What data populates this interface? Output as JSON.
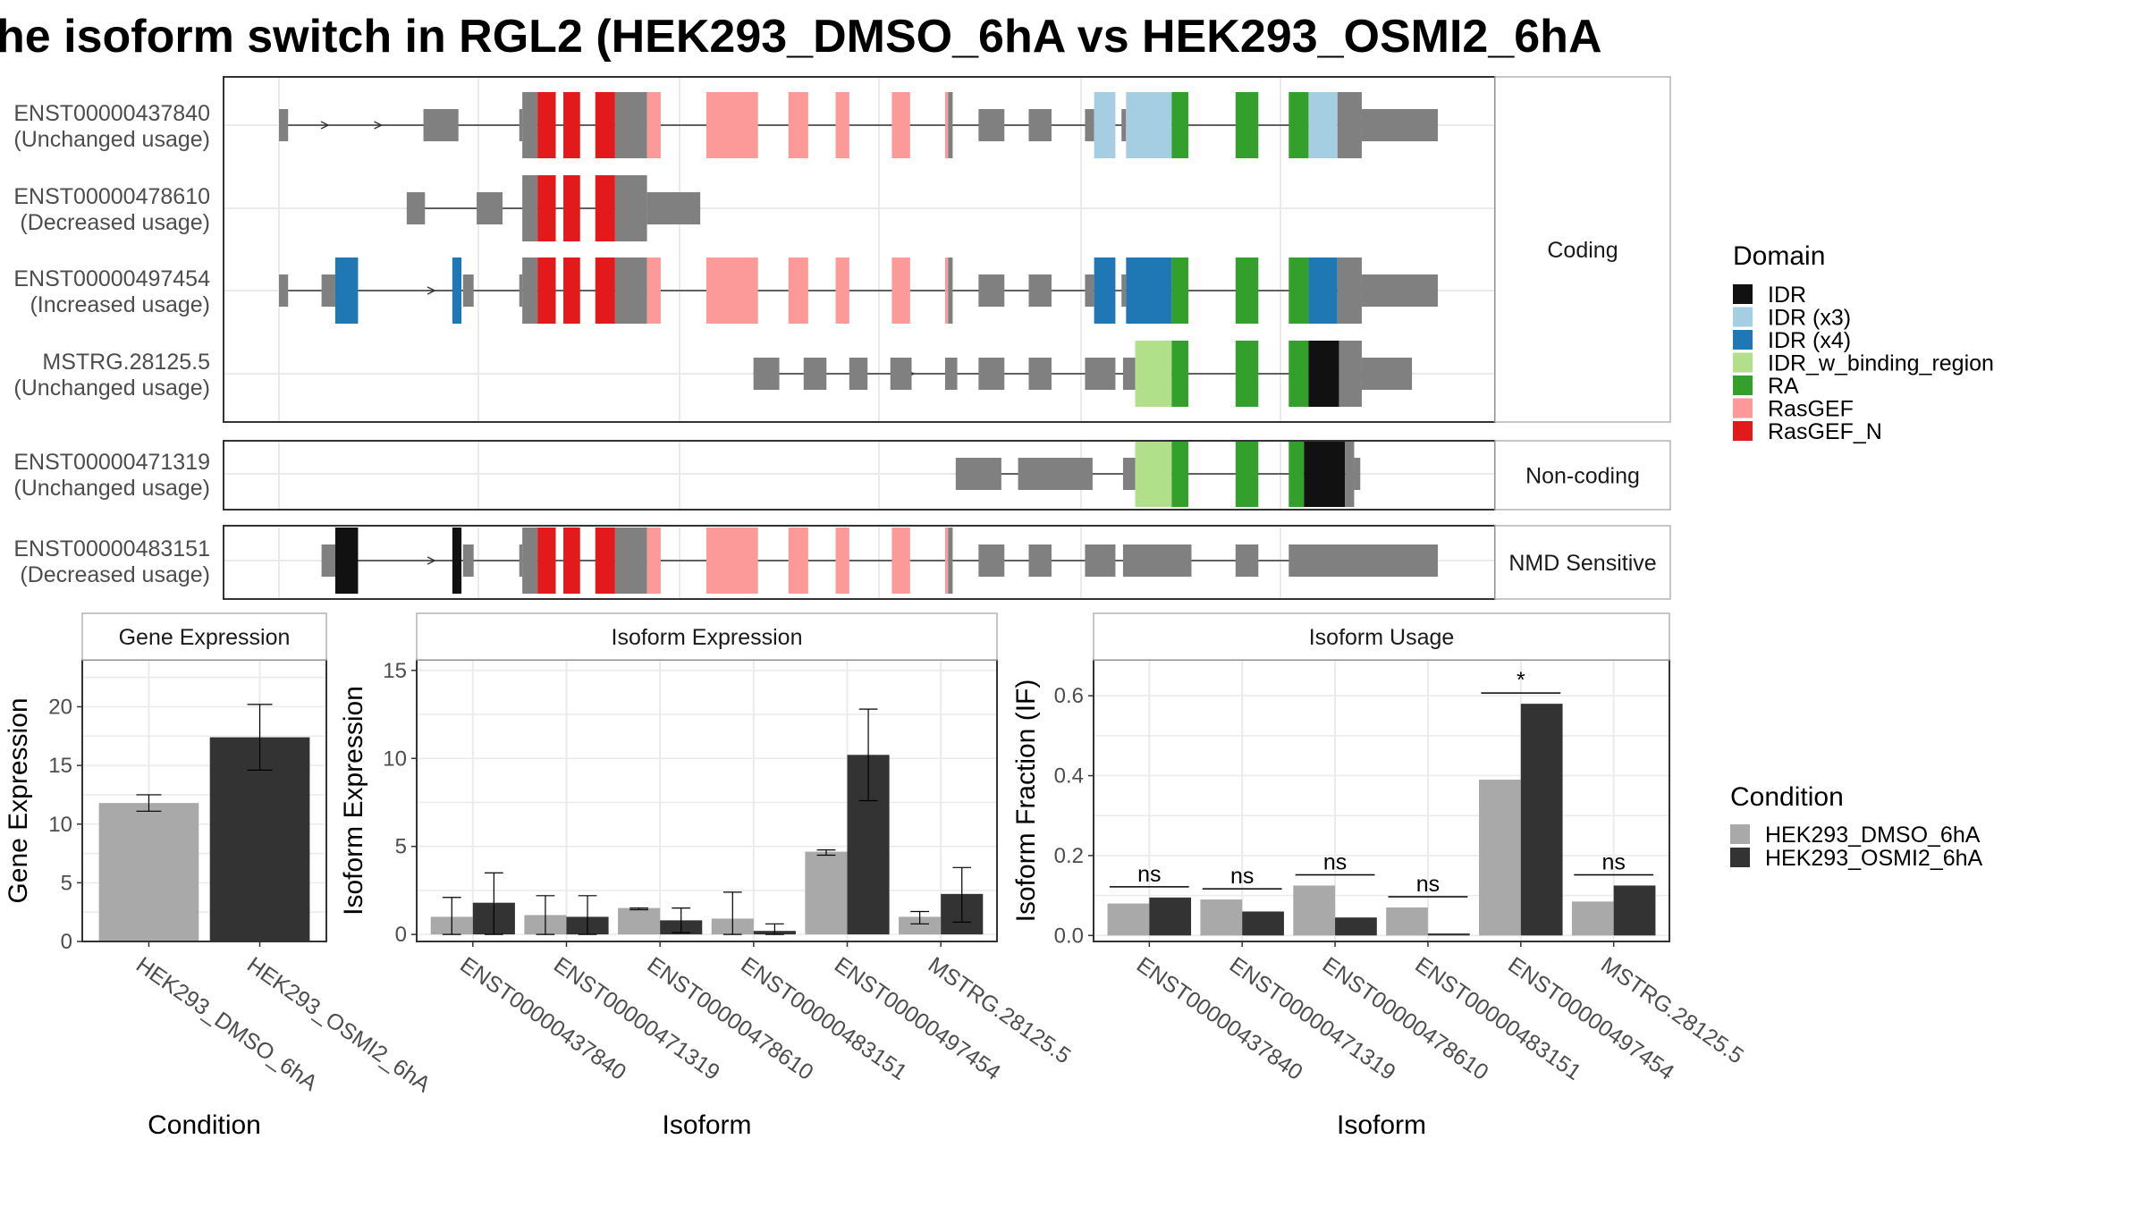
{
  "figure": {
    "title": "he isoform switch in RGL2 (HEK293_DMSO_6hA vs HEK293_OSMI2_6hA"
  },
  "structure_panel": {
    "groups": [
      {
        "label": "Coding",
        "rows": [
          0,
          1,
          2,
          3
        ]
      },
      {
        "label": "Non-coding",
        "rows": [
          4
        ]
      },
      {
        "label": "NMD Sensitive",
        "rows": [
          5
        ]
      }
    ],
    "transcripts": [
      {
        "id": "ENST00000437840",
        "usage": "(Unchanged usage)",
        "segments": [
          [
            0,
            6,
            "exon"
          ],
          [
            95,
            118,
            "exon"
          ],
          [
            158,
            160,
            "exon"
          ],
          [
            160,
            170,
            "cds"
          ],
          [
            170,
            182,
            "RasGEF_N"
          ],
          [
            187,
            198,
            "RasGEF_N"
          ],
          [
            208,
            221,
            "RasGEF_N"
          ],
          [
            221,
            242,
            "cds"
          ],
          [
            242,
            251,
            "RasGEF"
          ],
          [
            281,
            315,
            "RasGEF"
          ],
          [
            335,
            348,
            "RasGEF"
          ],
          [
            366,
            375,
            "RasGEF"
          ],
          [
            403,
            415,
            "RasGEF"
          ],
          [
            438,
            440,
            "RasGEF"
          ],
          [
            440,
            443,
            "cds"
          ],
          [
            460,
            477,
            "exon"
          ],
          [
            493,
            508,
            "exon"
          ],
          [
            530,
            536,
            "exon"
          ],
          [
            536,
            550,
            "IDR (x3)"
          ],
          [
            554,
            557,
            "exon"
          ],
          [
            557,
            587,
            "IDR (x3)"
          ],
          [
            587,
            598,
            "RA"
          ],
          [
            629,
            644,
            "RA"
          ],
          [
            664,
            677,
            "RA"
          ],
          [
            677,
            696,
            "IDR (x3)"
          ],
          [
            696,
            712,
            "cds"
          ],
          [
            712,
            762,
            "exon"
          ]
        ],
        "arrows": [
          30,
          65,
          100
        ]
      },
      {
        "id": "ENST00000478610",
        "usage": "(Decreased usage)",
        "segments": [
          [
            84,
            96,
            "exon"
          ],
          [
            130,
            147,
            "exon"
          ],
          [
            160,
            170,
            "cds"
          ],
          [
            170,
            182,
            "RasGEF_N"
          ],
          [
            187,
            198,
            "RasGEF_N"
          ],
          [
            208,
            221,
            "RasGEF_N"
          ],
          [
            221,
            242,
            "cds"
          ],
          [
            242,
            277,
            "exon"
          ]
        ],
        "arrows": []
      },
      {
        "id": "ENST00000497454",
        "usage": "(Increased usage)",
        "segments": [
          [
            0,
            6,
            "exon"
          ],
          [
            28,
            37,
            "exon"
          ],
          [
            37,
            52,
            "IDR (x4)"
          ],
          [
            114,
            120,
            "IDR (x4)"
          ],
          [
            121,
            128,
            "exon"
          ],
          [
            158,
            160,
            "exon"
          ],
          [
            160,
            170,
            "cds"
          ],
          [
            170,
            182,
            "RasGEF_N"
          ],
          [
            187,
            198,
            "RasGEF_N"
          ],
          [
            208,
            221,
            "RasGEF_N"
          ],
          [
            221,
            242,
            "cds"
          ],
          [
            242,
            251,
            "RasGEF"
          ],
          [
            281,
            315,
            "RasGEF"
          ],
          [
            335,
            348,
            "RasGEF"
          ],
          [
            366,
            375,
            "RasGEF"
          ],
          [
            403,
            415,
            "RasGEF"
          ],
          [
            438,
            440,
            "RasGEF"
          ],
          [
            440,
            443,
            "cds"
          ],
          [
            460,
            477,
            "exon"
          ],
          [
            493,
            508,
            "exon"
          ],
          [
            530,
            536,
            "exon"
          ],
          [
            536,
            550,
            "IDR (x4)"
          ],
          [
            554,
            557,
            "exon"
          ],
          [
            557,
            587,
            "IDR (x4)"
          ],
          [
            587,
            598,
            "RA"
          ],
          [
            629,
            644,
            "RA"
          ],
          [
            664,
            677,
            "RA"
          ],
          [
            677,
            696,
            "IDR (x4)"
          ],
          [
            696,
            712,
            "cds"
          ],
          [
            712,
            762,
            "exon"
          ]
        ],
        "arrows": [
          100
        ]
      },
      {
        "id": "MSTRG.28125.5",
        "usage": "(Unchanged usage)",
        "segments": [
          [
            312,
            329,
            "exon"
          ],
          [
            345,
            360,
            "exon"
          ],
          [
            375,
            387,
            "exon"
          ],
          [
            402,
            416,
            "exon"
          ],
          [
            438,
            446,
            "exon"
          ],
          [
            460,
            477,
            "exon"
          ],
          [
            493,
            508,
            "exon"
          ],
          [
            530,
            550,
            "exon"
          ],
          [
            555,
            563,
            "exon"
          ],
          [
            563,
            587,
            "IDR_w_binding_region"
          ],
          [
            587,
            598,
            "RA"
          ],
          [
            629,
            644,
            "RA"
          ],
          [
            664,
            677,
            "RA"
          ],
          [
            677,
            697,
            "IDR"
          ],
          [
            697,
            712,
            "cds"
          ],
          [
            712,
            745,
            "exon"
          ]
        ],
        "arrows": [
          415,
          442
        ]
      },
      {
        "id": "ENST00000471319",
        "usage": "(Unchanged usage)",
        "segments": [
          [
            445,
            475,
            "exon"
          ],
          [
            486,
            535,
            "exon"
          ],
          [
            555,
            563,
            "exon"
          ],
          [
            563,
            587,
            "IDR_w_binding_region"
          ],
          [
            587,
            598,
            "RA"
          ],
          [
            629,
            644,
            "RA"
          ],
          [
            664,
            674,
            "RA"
          ],
          [
            674,
            701,
            "IDR"
          ],
          [
            701,
            707,
            "cds"
          ],
          [
            707,
            711,
            "exon"
          ]
        ],
        "arrows": []
      },
      {
        "id": "ENST00000483151",
        "usage": "(Decreased usage)",
        "segments": [
          [
            28,
            37,
            "exon"
          ],
          [
            37,
            52,
            "IDR"
          ],
          [
            114,
            120,
            "IDR"
          ],
          [
            121,
            128,
            "exon"
          ],
          [
            158,
            160,
            "exon"
          ],
          [
            160,
            170,
            "cds"
          ],
          [
            170,
            182,
            "RasGEF_N"
          ],
          [
            187,
            198,
            "RasGEF_N"
          ],
          [
            208,
            221,
            "RasGEF_N"
          ],
          [
            221,
            242,
            "cds"
          ],
          [
            242,
            251,
            "RasGEF"
          ],
          [
            281,
            315,
            "RasGEF"
          ],
          [
            335,
            348,
            "RasGEF"
          ],
          [
            366,
            375,
            "RasGEF"
          ],
          [
            403,
            415,
            "RasGEF"
          ],
          [
            438,
            440,
            "RasGEF"
          ],
          [
            440,
            443,
            "cds"
          ],
          [
            460,
            477,
            "exon"
          ],
          [
            493,
            508,
            "exon"
          ],
          [
            530,
            550,
            "exon"
          ],
          [
            555,
            600,
            "exon"
          ],
          [
            629,
            644,
            "exon"
          ],
          [
            664,
            762,
            "exon"
          ]
        ],
        "arrows": [
          100
        ]
      }
    ]
  },
  "legend_domain": {
    "title": "Domain",
    "items": [
      {
        "label": "IDR",
        "color": "#111111"
      },
      {
        "label": "IDR (x3)",
        "color": "#a6cee3"
      },
      {
        "label": "IDR (x4)",
        "color": "#1f78b4"
      },
      {
        "label": "IDR_w_binding_region",
        "color": "#b2df8a"
      },
      {
        "label": "RA",
        "color": "#33a02c"
      },
      {
        "label": "RasGEF",
        "color": "#fb9a99"
      },
      {
        "label": "RasGEF_N",
        "color": "#e31a1c"
      }
    ]
  },
  "legend_condition": {
    "title": "Condition",
    "items": [
      {
        "label": "HEK293_DMSO_6hA",
        "color": "#a9a9a9"
      },
      {
        "label": "HEK293_OSMI2_6hA",
        "color": "#333333"
      }
    ]
  },
  "colors": {
    "exon": "#808080",
    "intron": "#333333",
    "panel_border": "#333333",
    "gridline": "#ebebeb",
    "strip_fill": "#ffffff",
    "strip_border": "#b3b3b3"
  },
  "chart_data": [
    {
      "type": "bar",
      "title": "Gene Expression",
      "xlabel": "Condition",
      "ylabel": "Gene Expression",
      "categories": [
        "HEK293_DMSO_6hA",
        "HEK293_OSMI2_6hA"
      ],
      "values": [
        11.8,
        17.4
      ],
      "errors": [
        [
          11.1,
          12.5
        ],
        [
          14.6,
          20.2
        ]
      ],
      "ylim": [
        0,
        24
      ],
      "yticks": [
        0,
        5,
        10,
        15,
        20
      ],
      "grid": true
    },
    {
      "type": "bar",
      "title": "Isoform Expression",
      "xlabel": "Isoform",
      "ylabel": "Isoform Expression",
      "categories": [
        "ENST00000437840",
        "ENST00000471319",
        "ENST00000478610",
        "ENST00000483151",
        "ENST00000497454",
        "MSTRG.28125.5"
      ],
      "series": [
        {
          "name": "HEK293_DMSO_6hA",
          "values": [
            1.0,
            1.1,
            1.5,
            0.9,
            4.7,
            1.0
          ],
          "errors": [
            [
              0.0,
              2.1
            ],
            [
              0.0,
              2.2
            ],
            [
              1.4,
              1.5
            ],
            [
              0.0,
              2.4
            ],
            [
              4.5,
              4.8
            ],
            [
              0.6,
              1.3
            ]
          ]
        },
        {
          "name": "HEK293_OSMI2_6hA",
          "values": [
            1.8,
            1.0,
            0.8,
            0.2,
            10.2,
            2.3
          ],
          "errors": [
            [
              0.0,
              3.5
            ],
            [
              0.0,
              2.2
            ],
            [
              0.1,
              1.5
            ],
            [
              0.0,
              0.6
            ],
            [
              7.6,
              12.8
            ],
            [
              0.7,
              3.8
            ]
          ]
        }
      ],
      "ylim": [
        -0.4,
        15.6
      ],
      "yticks": [
        0,
        5,
        10,
        15
      ],
      "grid": true
    },
    {
      "type": "bar",
      "title": "Isoform Usage",
      "xlabel": "Isoform",
      "ylabel": "Isoform Fraction (IF)",
      "categories": [
        "ENST00000437840",
        "ENST00000471319",
        "ENST00000478610",
        "ENST00000483151",
        "ENST00000497454",
        "MSTRG.28125.5"
      ],
      "series": [
        {
          "name": "HEK293_DMSO_6hA",
          "values": [
            0.08,
            0.09,
            0.125,
            0.07,
            0.39,
            0.085
          ]
        },
        {
          "name": "HEK293_OSMI2_6hA",
          "values": [
            0.095,
            0.06,
            0.045,
            0.005,
            0.58,
            0.125
          ]
        }
      ],
      "significance": [
        "ns",
        "ns",
        "ns",
        "ns",
        "*",
        "ns"
      ],
      "ylim": [
        -0.015,
        0.69
      ],
      "yticks": [
        0.0,
        0.2,
        0.4,
        0.6
      ],
      "ytick_labels": [
        "0.0",
        "0.2",
        "0.4",
        "0.6"
      ],
      "grid": true
    }
  ]
}
